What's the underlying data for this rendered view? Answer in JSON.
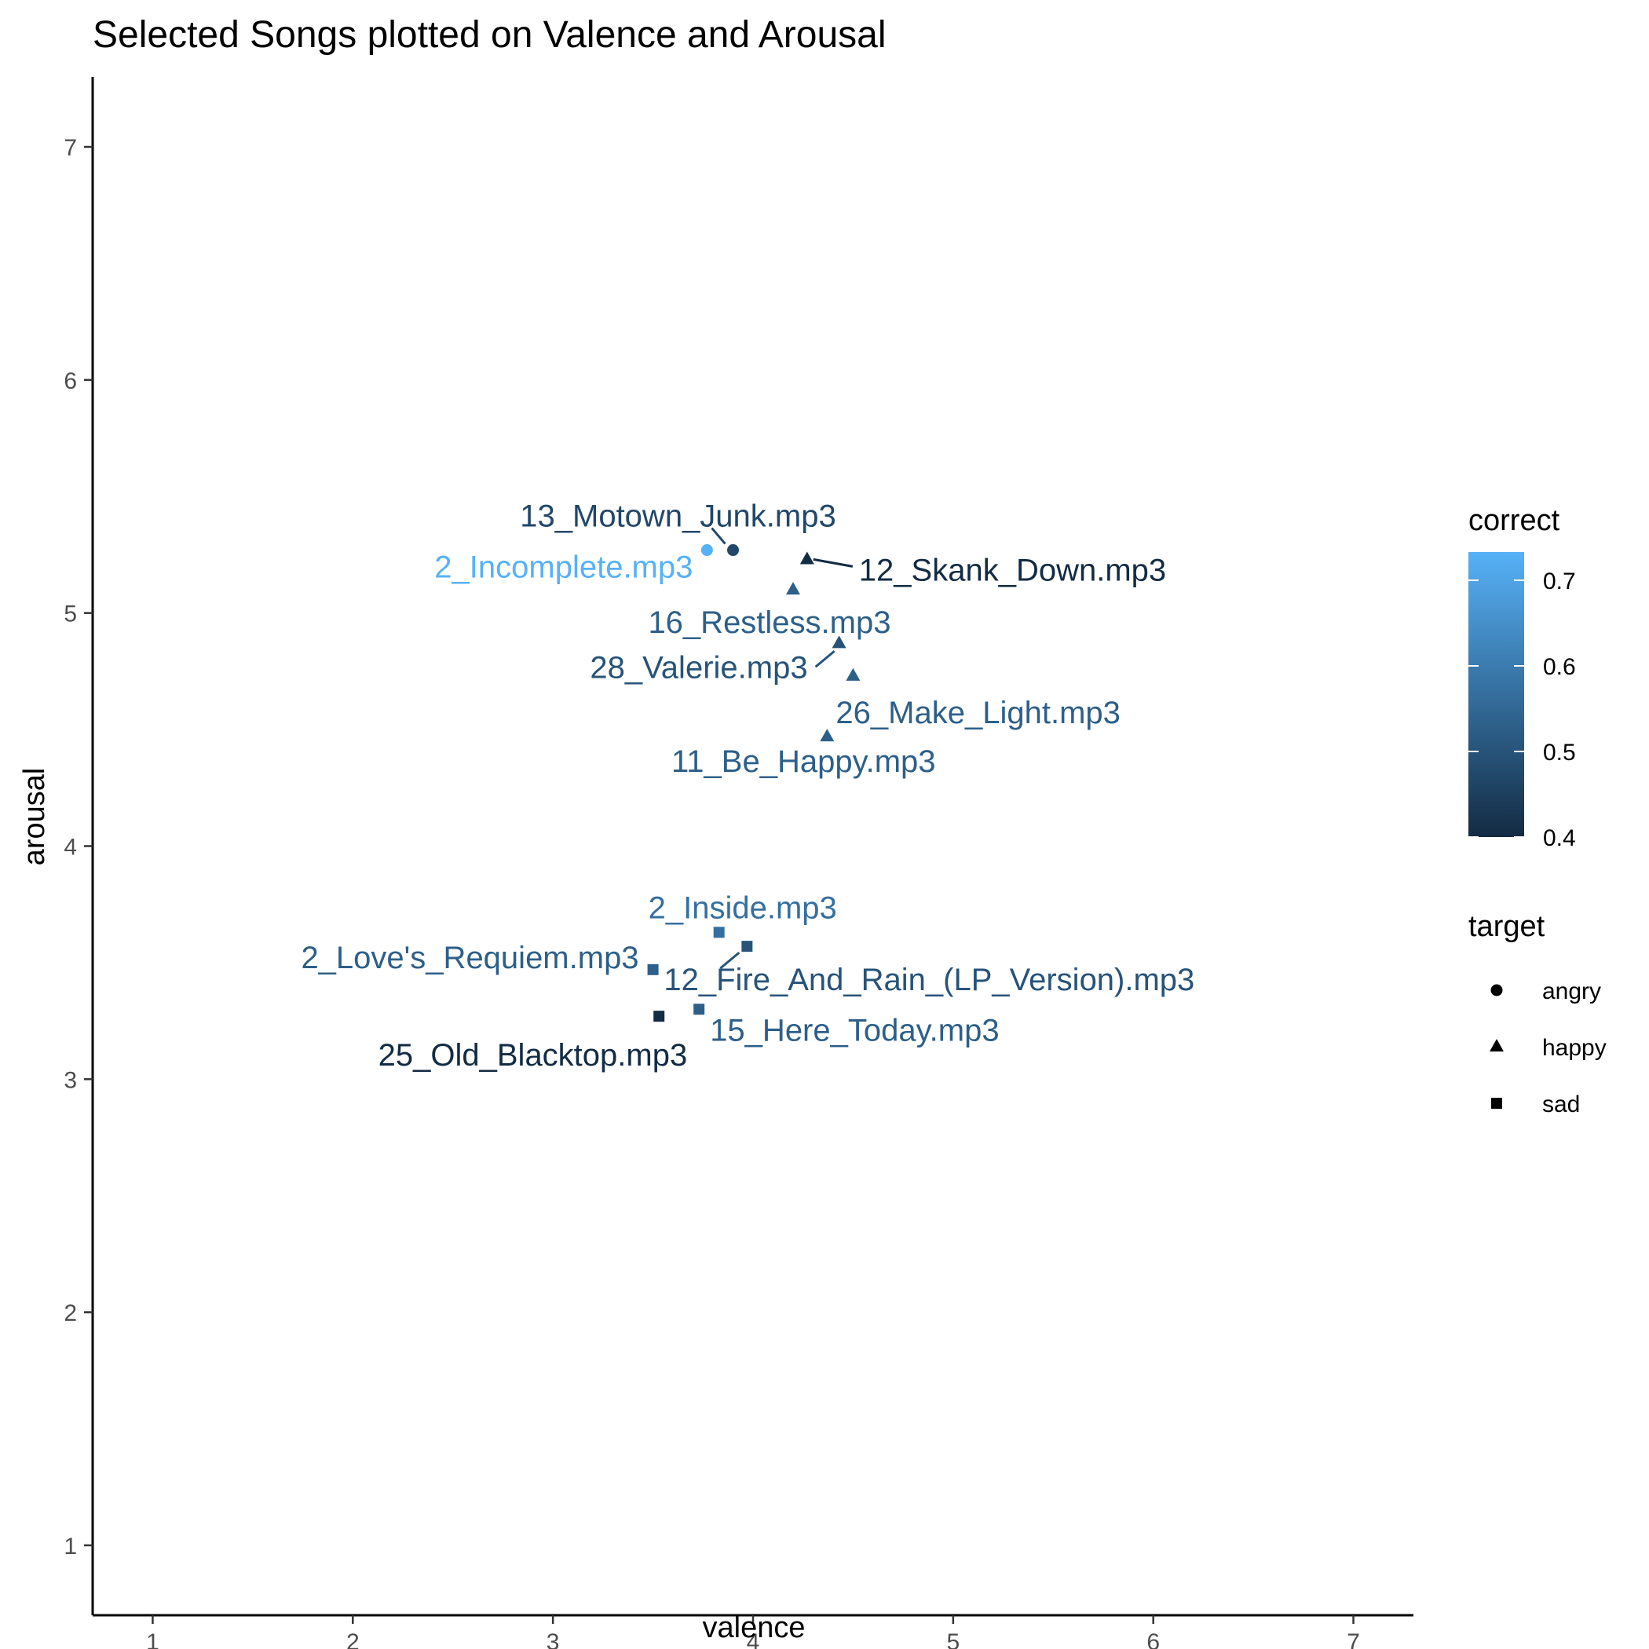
{
  "chart_data": {
    "type": "scatter",
    "title": "Selected Songs plotted on Valence and Arousal",
    "xlabel": "valence",
    "ylabel": "arousal",
    "xlim": [
      0.7,
      7.3
    ],
    "ylim": [
      0.7,
      7.3
    ],
    "x_ticks": [
      1,
      2,
      3,
      4,
      5,
      6,
      7
    ],
    "y_ticks": [
      1,
      2,
      3,
      4,
      5,
      6,
      7
    ],
    "grid": false,
    "color_scale": {
      "title": "correct",
      "min": 0.4,
      "max": 0.733,
      "low_color": "#132b43",
      "high_color": "#56b1f7",
      "ticks": [
        0.4,
        0.5,
        0.6,
        0.7
      ],
      "tick_labels": [
        "0.4",
        "0.5",
        "0.6",
        "0.7"
      ]
    },
    "shape_legend": {
      "title": "target",
      "placement": "right",
      "entries": [
        {
          "label": "angry",
          "shape": "circle"
        },
        {
          "label": "happy",
          "shape": "triangle"
        },
        {
          "label": "sad",
          "shape": "square"
        }
      ]
    },
    "points": [
      {
        "label": "13_Motown_Junk.mp3",
        "valence": 3.9,
        "arousal": 5.27,
        "target": "angry",
        "correct": 0.47
      },
      {
        "label": "2_Incomplete.mp3",
        "valence": 3.77,
        "arousal": 5.27,
        "target": "angry",
        "correct": 0.733
      },
      {
        "label": "12_Skank_Down.mp3",
        "valence": 4.27,
        "arousal": 5.23,
        "target": "happy",
        "correct": 0.4
      },
      {
        "label": "16_Restless.mp3",
        "valence": 4.2,
        "arousal": 5.1,
        "target": "happy",
        "correct": 0.53
      },
      {
        "label": "28_Valerie.mp3",
        "valence": 4.43,
        "arousal": 4.87,
        "target": "happy",
        "correct": 0.5
      },
      {
        "label": "26_Make_Light.mp3",
        "valence": 4.5,
        "arousal": 4.73,
        "target": "happy",
        "correct": 0.53
      },
      {
        "label": "11_Be_Happy.mp3",
        "valence": 4.37,
        "arousal": 4.47,
        "target": "happy",
        "correct": 0.53
      },
      {
        "label": "2_Inside.mp3",
        "valence": 3.83,
        "arousal": 3.63,
        "target": "sad",
        "correct": 0.57
      },
      {
        "label": "12_Fire_And_Rain_(LP_Version).mp3",
        "valence": 3.97,
        "arousal": 3.57,
        "target": "sad",
        "correct": 0.5
      },
      {
        "label": "2_Love's_Requiem.mp3",
        "valence": 3.5,
        "arousal": 3.47,
        "target": "sad",
        "correct": 0.53
      },
      {
        "label": "15_Here_Today.mp3",
        "valence": 3.73,
        "arousal": 3.3,
        "target": "sad",
        "correct": 0.53
      },
      {
        "label": "25_Old_Blacktop.mp3",
        "valence": 3.53,
        "arousal": 3.27,
        "target": "sad",
        "correct": 0.4
      }
    ]
  }
}
